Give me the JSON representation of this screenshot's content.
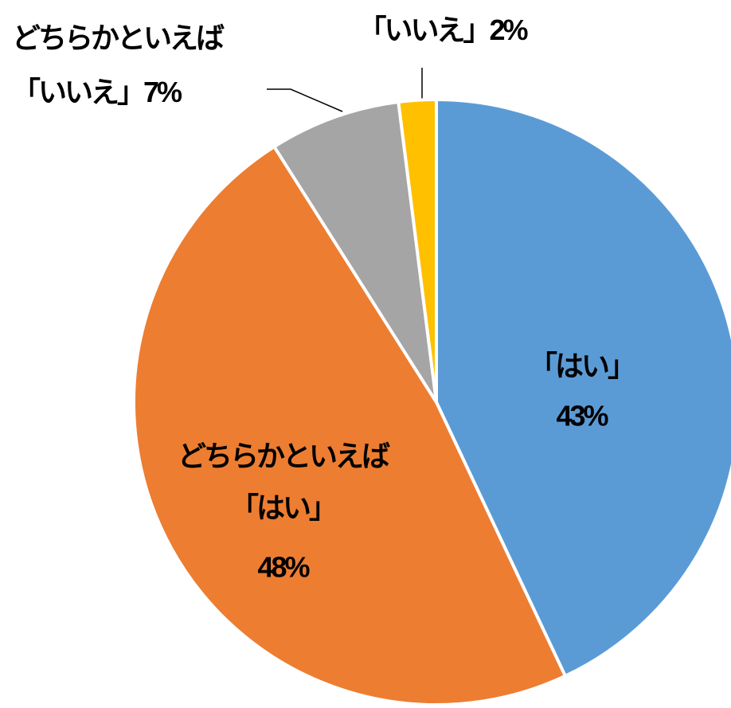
{
  "chart_data": {
    "type": "pie",
    "categories": [
      [
        "「はい」"
      ],
      [
        "どちらかといえば",
        "「はい」"
      ],
      [
        "どちらかといえば",
        "「いいえ」"
      ],
      [
        "「いいえ」"
      ]
    ],
    "values": [
      43,
      48,
      7,
      2
    ],
    "value_labels": [
      "43%",
      "48%",
      "7%",
      "2%"
    ],
    "colors": [
      "#5b9bd5",
      "#ed7d31",
      "#a5a5a5",
      "#ffc000"
    ]
  }
}
